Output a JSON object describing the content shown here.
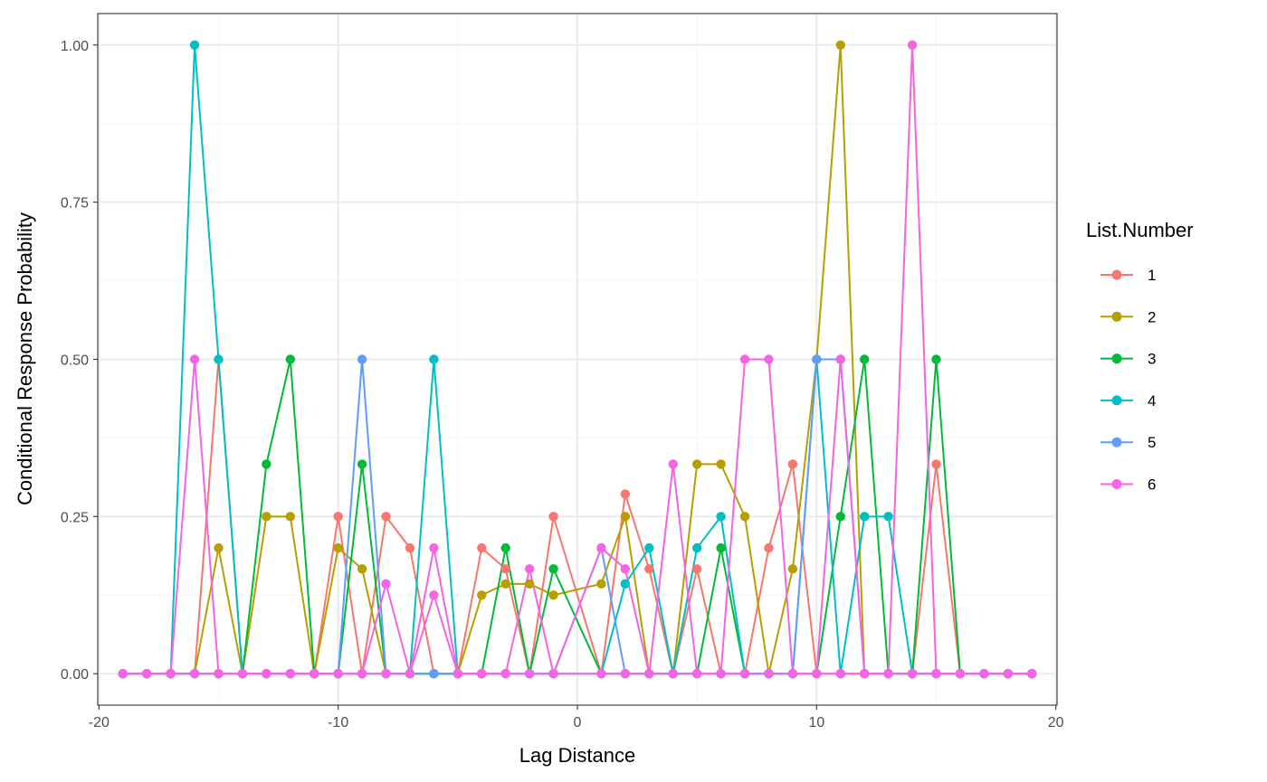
{
  "chart_data": {
    "type": "line",
    "xlabel": "Lag Distance",
    "ylabel": "Conditional Response Probability",
    "xlim": [
      -20.05,
      20.05
    ],
    "ylim": [
      -0.05,
      1.05
    ],
    "x_ticks": [
      -20,
      -10,
      0,
      10,
      20
    ],
    "x_tick_labels": [
      "-20",
      "-10",
      "0",
      "10",
      "20"
    ],
    "y_ticks": [
      0,
      0.25,
      0.5,
      0.75,
      1.0
    ],
    "y_tick_labels": [
      "0.00",
      "0.25",
      "0.50",
      "0.75",
      "1.00"
    ],
    "grid": true,
    "legend": {
      "title": "List.Number",
      "placement": "right"
    },
    "x": [
      -19,
      -18,
      -17,
      -16,
      -15,
      -14,
      -13,
      -12,
      -11,
      -10,
      -9,
      -8,
      -7,
      -6,
      -5,
      -4,
      -3,
      -2,
      -1,
      1,
      2,
      3,
      4,
      5,
      6,
      7,
      8,
      9,
      10,
      11,
      12,
      13,
      14,
      15,
      16,
      17,
      18,
      19
    ],
    "series": [
      {
        "name": "1",
        "color": "#F8766D",
        "values": [
          0,
          0,
          0,
          0,
          0.5,
          0,
          0,
          0,
          0,
          0.25,
          0,
          0.25,
          0.2,
          0,
          0,
          0.2,
          0.1667,
          0,
          0.25,
          0,
          0.2857,
          0.1667,
          0,
          0.1667,
          0,
          0,
          0.2,
          0.3333,
          0,
          0,
          0,
          0,
          0,
          0.3333,
          0,
          0,
          0,
          0
        ]
      },
      {
        "name": "2",
        "color": "#B79F00",
        "values": [
          0,
          0,
          0,
          0,
          0.2,
          0,
          0.25,
          0.25,
          0,
          0.2,
          0.1667,
          0,
          0,
          0,
          0,
          0.125,
          0.1429,
          0.1429,
          0.125,
          0.1429,
          0.25,
          0,
          0,
          0.3333,
          0.3333,
          0.25,
          0,
          0.1667,
          0.5,
          1.0,
          0,
          0,
          0,
          0,
          0,
          0,
          0,
          0
        ]
      },
      {
        "name": "3",
        "color": "#00BA38",
        "values": [
          0,
          0,
          0,
          0,
          0,
          0,
          0.3333,
          0.5,
          0,
          0,
          0.3333,
          0,
          0,
          0,
          0,
          0,
          0.2,
          0,
          0.1667,
          0,
          0,
          0,
          0,
          0,
          0.2,
          0,
          0,
          0,
          0,
          0.25,
          0.5,
          0,
          0,
          0.5,
          0,
          0,
          0,
          0
        ]
      },
      {
        "name": "4",
        "color": "#00BFC4",
        "values": [
          0,
          0,
          0,
          1.0,
          0.5,
          0,
          0,
          0,
          0,
          0,
          0,
          0,
          0,
          0.5,
          0,
          0,
          0,
          0,
          0,
          0,
          0.1429,
          0.2,
          0,
          0.2,
          0.25,
          0,
          0,
          0,
          0.5,
          0,
          0.25,
          0.25,
          0,
          0,
          0,
          0,
          0,
          0
        ]
      },
      {
        "name": "5",
        "color": "#619CFF",
        "values": [
          0,
          0,
          0,
          0,
          0,
          0,
          0,
          0,
          0,
          0,
          0.5,
          0,
          0,
          0,
          0,
          0,
          0,
          0,
          0,
          0.2,
          0,
          0,
          0,
          0,
          0,
          0,
          0,
          0,
          0.5,
          0.5,
          0,
          0,
          0,
          0,
          0,
          0,
          0,
          0
        ]
      },
      {
        "name": "6",
        "color": "#F564E3",
        "values": [
          0,
          0,
          0,
          0.5,
          0,
          0,
          0,
          0,
          0,
          0,
          0,
          0.1429,
          0,
          0.125,
          0,
          0,
          0,
          0.1667,
          0,
          0.2,
          0.1667,
          0,
          0.3333,
          0,
          0,
          0.5,
          0.5,
          0,
          0,
          0.5,
          0,
          0,
          1.0,
          0,
          0,
          0,
          0,
          0
        ]
      },
      {
        "name": "",
        "color": "#F564E3",
        "values": [
          0,
          0,
          0,
          0,
          0,
          0,
          0,
          0,
          0,
          0,
          0,
          0,
          0,
          0.2,
          0,
          0,
          0,
          0,
          0,
          0,
          0,
          0,
          0,
          0,
          0,
          0,
          0,
          0,
          0,
          0,
          0,
          0,
          0,
          0,
          0,
          0,
          0,
          0
        ]
      }
    ]
  },
  "colors": {
    "panel_border": "#333333",
    "grid_major": "#EBEBEB",
    "grid_minor": "#F5F5F5",
    "tick_text": "#4D4D4D"
  }
}
